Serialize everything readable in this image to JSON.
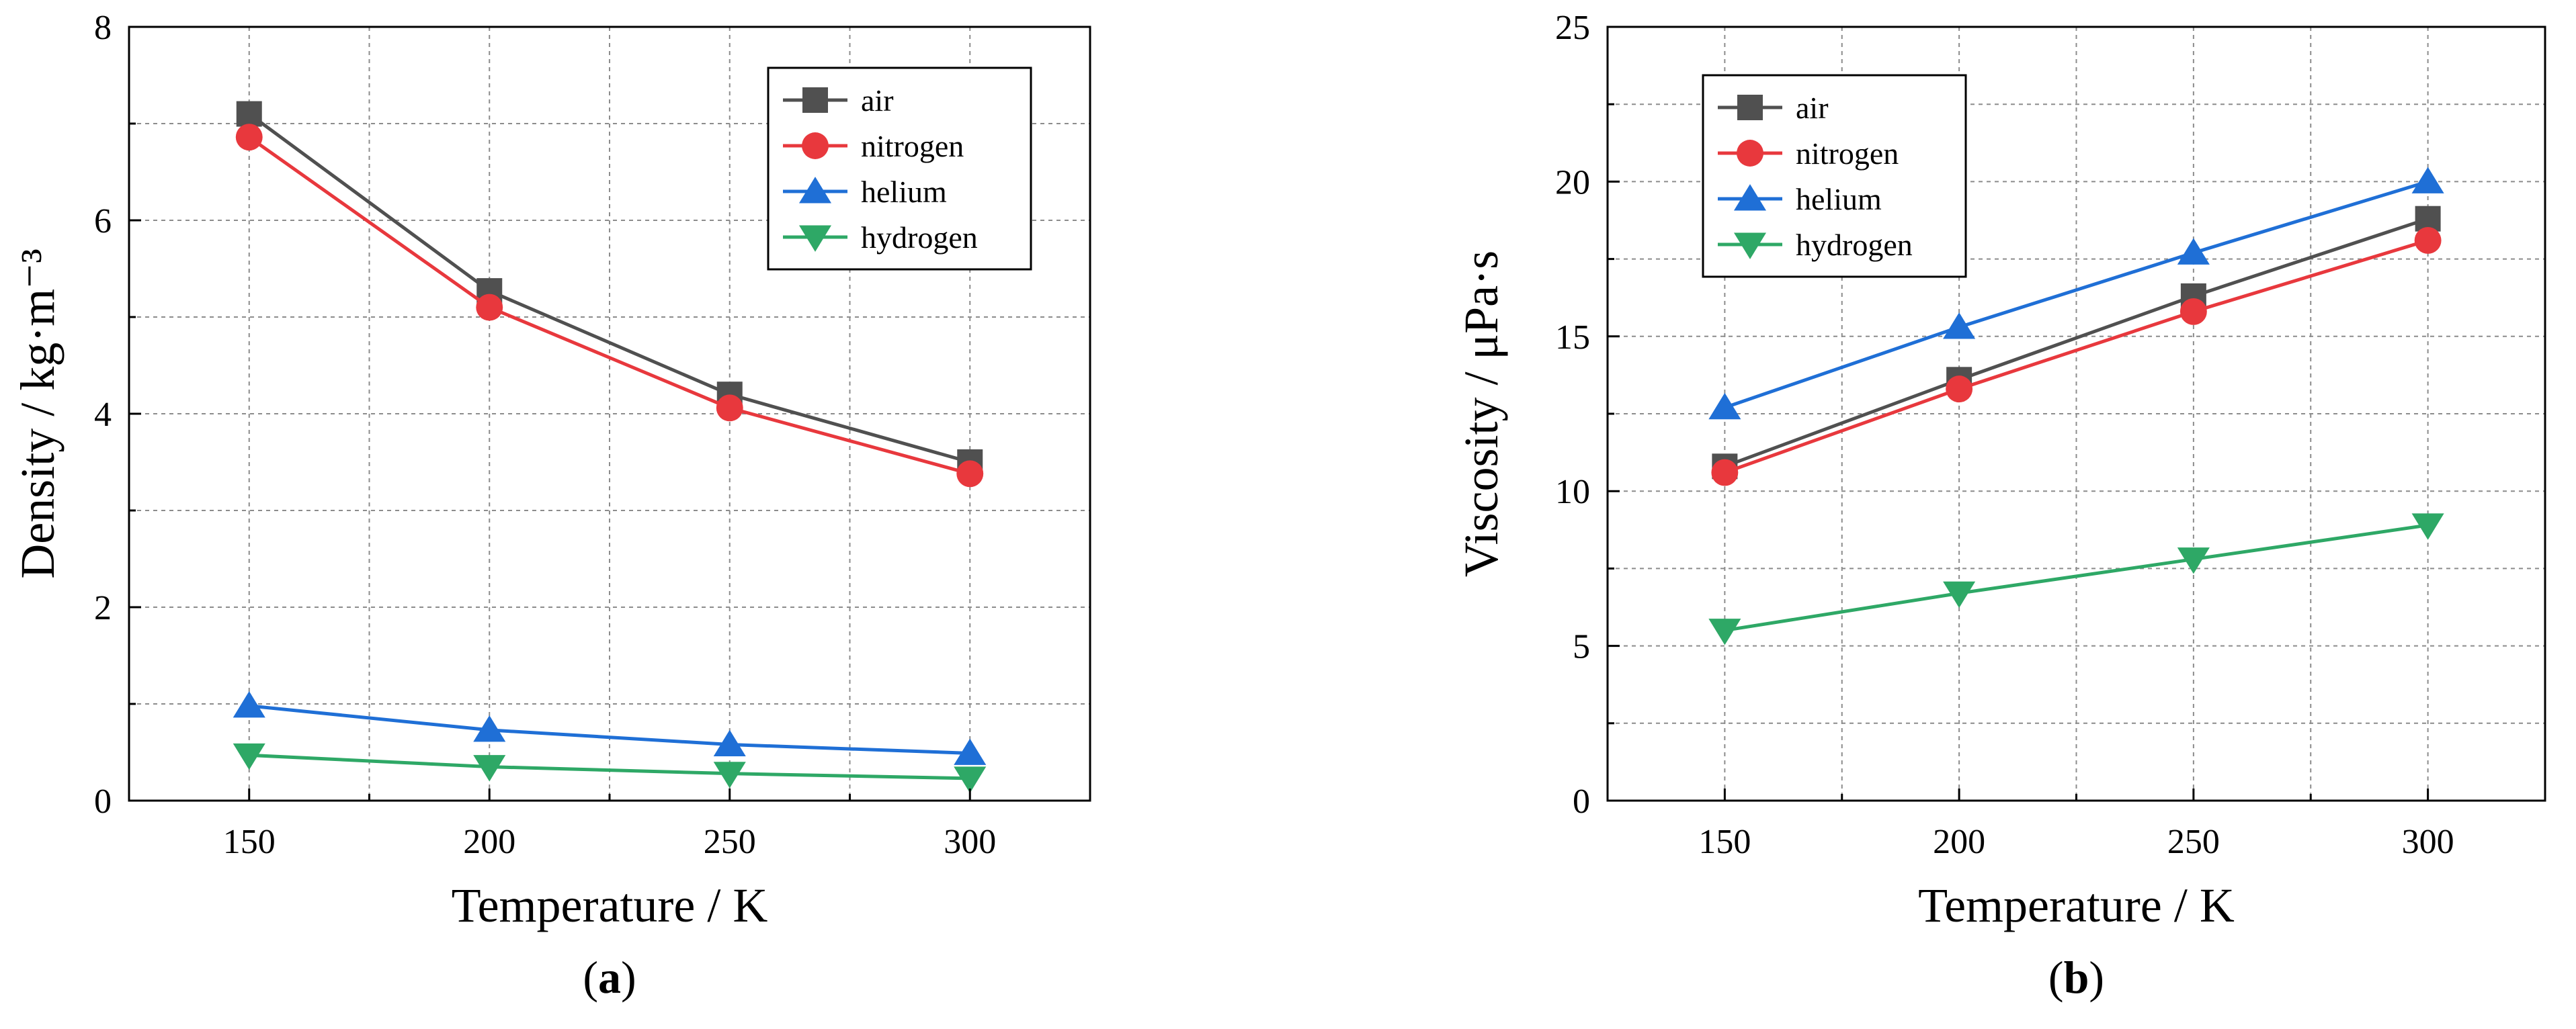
{
  "chart_data": [
    {
      "type": "line",
      "xlabel": "Temperature / K",
      "ylabel": "Density / kg·m⁻³",
      "caption_letter": "a",
      "x": [
        150,
        200,
        250,
        300
      ],
      "xlim": [
        125,
        325
      ],
      "ylim": [
        0,
        8
      ],
      "xticks": [
        "150",
        "200",
        "250",
        "300"
      ],
      "yticks": [
        "0",
        "2",
        "4",
        "6",
        "8"
      ],
      "grid": true,
      "legend_position": "top-right",
      "series": [
        {
          "name": "air",
          "marker": "square",
          "color": "#505050",
          "values": [
            7.1,
            5.27,
            4.2,
            3.5
          ]
        },
        {
          "name": "nitrogen",
          "marker": "circle",
          "color": "#e8383d",
          "values": [
            6.86,
            5.1,
            4.06,
            3.38
          ]
        },
        {
          "name": "helium",
          "marker": "triangle-up",
          "color": "#1f6fd6",
          "values": [
            0.98,
            0.73,
            0.58,
            0.49
          ]
        },
        {
          "name": "hydrogen",
          "marker": "triangle-down",
          "color": "#2ea866",
          "values": [
            0.47,
            0.35,
            0.28,
            0.23
          ]
        }
      ]
    },
    {
      "type": "line",
      "xlabel": "Temperature / K",
      "ylabel": "Viscosity / μPa·s",
      "caption_letter": "b",
      "x": [
        150,
        200,
        250,
        300
      ],
      "xlim": [
        125,
        325
      ],
      "ylim": [
        0,
        25
      ],
      "xticks": [
        "150",
        "200",
        "250",
        "300"
      ],
      "yticks": [
        "0",
        "5",
        "10",
        "15",
        "20",
        "25"
      ],
      "grid": true,
      "legend_position": "top-left",
      "series": [
        {
          "name": "air",
          "marker": "square",
          "color": "#505050",
          "values": [
            10.8,
            13.6,
            16.3,
            18.8
          ]
        },
        {
          "name": "nitrogen",
          "marker": "circle",
          "color": "#e8383d",
          "values": [
            10.6,
            13.3,
            15.8,
            18.1
          ]
        },
        {
          "name": "helium",
          "marker": "triangle-up",
          "color": "#1f6fd6",
          "values": [
            12.7,
            15.3,
            17.7,
            20.0
          ]
        },
        {
          "name": "hydrogen",
          "marker": "triangle-down",
          "color": "#2ea866",
          "values": [
            5.5,
            6.7,
            7.8,
            8.9
          ]
        }
      ]
    }
  ]
}
